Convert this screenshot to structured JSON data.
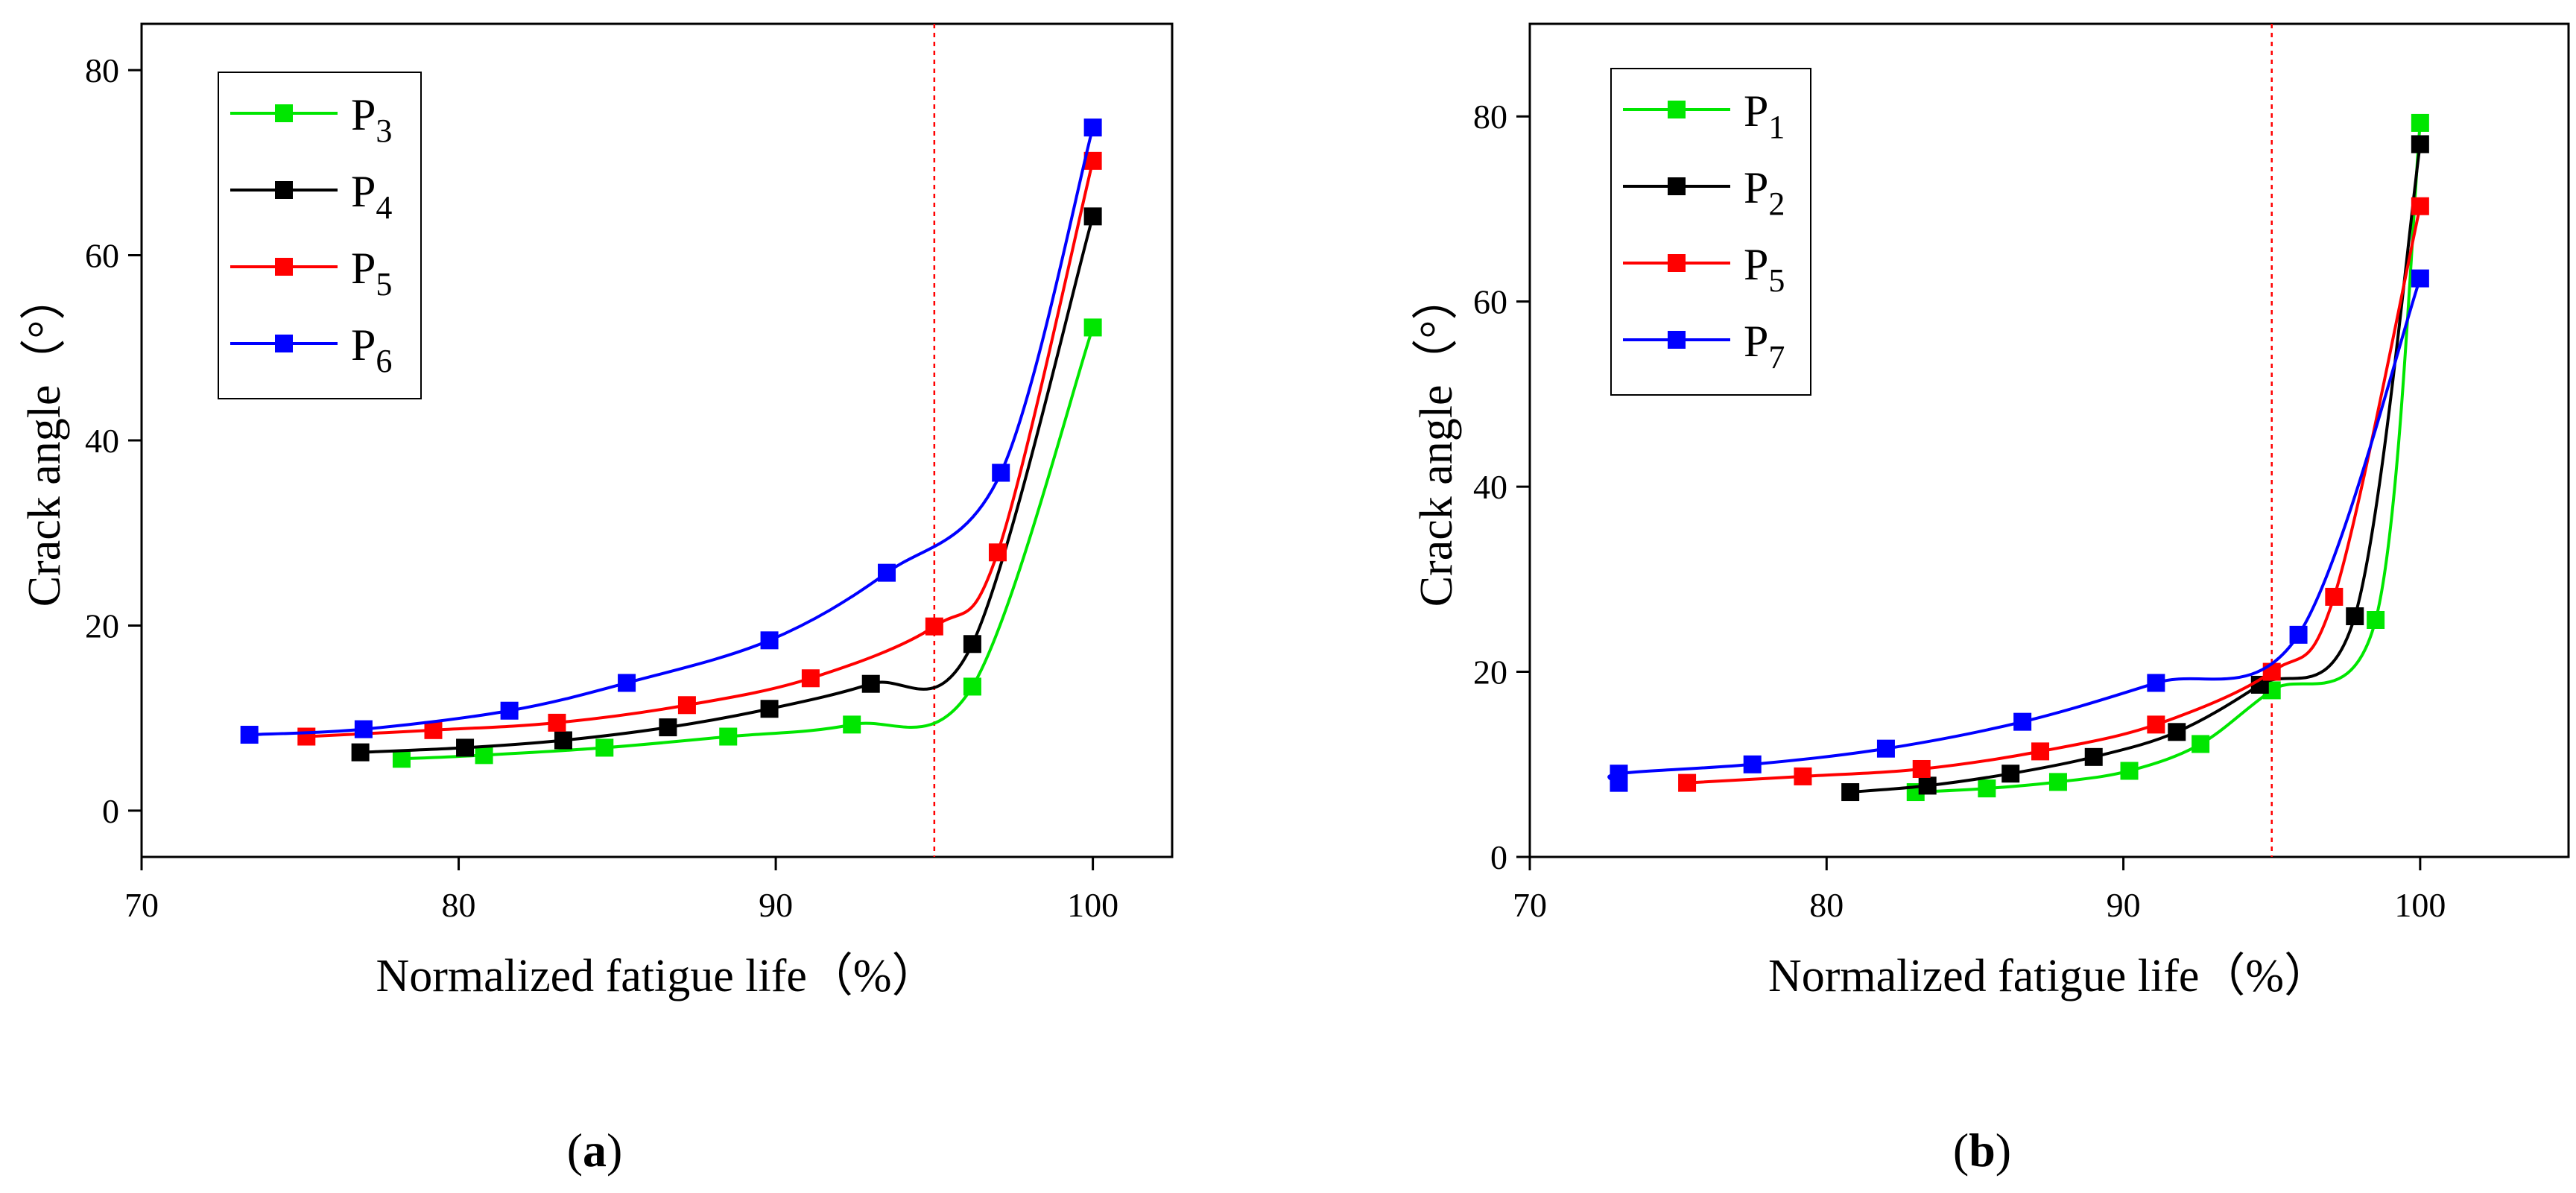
{
  "colors": {
    "green": "#00e600",
    "black": "#000000",
    "red": "#ff0000",
    "blue": "#0000ff",
    "refline": "#ff0000"
  },
  "chart_data": [
    {
      "type": "line",
      "panel_label": "a",
      "xlabel": "Normalized fatigue life（%）",
      "ylabel": "Crack angle（°）",
      "xlim": [
        70,
        102.5
      ],
      "ylim": [
        -5,
        85
      ],
      "xticks": [
        70,
        80,
        90,
        100
      ],
      "yticks": [
        0,
        20,
        40,
        60,
        80
      ],
      "reference_line_x": 95,
      "legend_position": "top-left",
      "series": [
        {
          "name": "P",
          "sub": "3",
          "color": "green",
          "x": [
            78.2,
            80.8,
            84.6,
            88.5,
            92.4,
            96.2,
            100.0
          ],
          "y": [
            5.6,
            6.0,
            6.8,
            8.0,
            9.3,
            13.4,
            52.2
          ]
        },
        {
          "name": "P",
          "sub": "4",
          "color": "black",
          "x": [
            76.9,
            80.2,
            83.3,
            86.6,
            89.8,
            93.0,
            96.2,
            100.0
          ],
          "y": [
            6.3,
            6.8,
            7.6,
            9.0,
            11.0,
            13.7,
            18.0,
            64.2
          ]
        },
        {
          "name": "P",
          "sub": "5",
          "color": "red",
          "x": [
            75.2,
            79.2,
            83.1,
            87.2,
            91.1,
            95.0,
            97.0,
            100.0
          ],
          "y": [
            8.0,
            8.7,
            9.5,
            11.4,
            14.3,
            19.9,
            27.9,
            70.2
          ]
        },
        {
          "name": "P",
          "sub": "6",
          "color": "blue",
          "x": [
            73.4,
            77.0,
            81.6,
            85.3,
            89.8,
            93.5,
            97.1,
            100.0
          ],
          "y": [
            8.2,
            8.8,
            10.8,
            13.8,
            18.4,
            25.7,
            36.5,
            73.8
          ]
        }
      ]
    },
    {
      "type": "line",
      "panel_label": "b",
      "xlabel": "Normalized fatigue life（%）",
      "ylabel": "Crack angle（°）",
      "xlim": [
        70,
        105
      ],
      "ylim": [
        0,
        90
      ],
      "xticks": [
        70,
        80,
        90,
        100
      ],
      "yticks": [
        0,
        20,
        40,
        60,
        80
      ],
      "reference_line_x": 95,
      "legend_position": "top-left",
      "series": [
        {
          "name": "P",
          "sub": "1",
          "color": "green",
          "x": [
            83.0,
            85.4,
            87.8,
            90.2,
            92.6,
            95.0,
            98.5,
            100.0
          ],
          "y": [
            7.0,
            7.4,
            8.1,
            9.3,
            12.2,
            18.0,
            25.6,
            79.3
          ]
        },
        {
          "name": "P",
          "sub": "2",
          "color": "black",
          "x": [
            80.8,
            83.4,
            86.2,
            89.0,
            91.8,
            94.6,
            97.8,
            100.0
          ],
          "y": [
            7.0,
            7.7,
            9.0,
            10.8,
            13.5,
            18.6,
            26.0,
            77.0
          ]
        },
        {
          "name": "P",
          "sub": "5",
          "color": "red",
          "x": [
            75.3,
            79.2,
            83.2,
            87.2,
            91.1,
            95.0,
            97.1,
            100.0
          ],
          "y": [
            8.0,
            8.7,
            9.5,
            11.4,
            14.3,
            20.0,
            28.1,
            70.3
          ]
        },
        {
          "name": "P",
          "sub": "7",
          "color": "blue",
          "x": [
            73.0,
            73.0,
            77.5,
            82.0,
            86.6,
            91.1,
            95.9,
            100.0
          ],
          "y": [
            8.0,
            9.0,
            10.0,
            11.7,
            14.6,
            18.8,
            24.0,
            62.5
          ]
        }
      ]
    }
  ]
}
